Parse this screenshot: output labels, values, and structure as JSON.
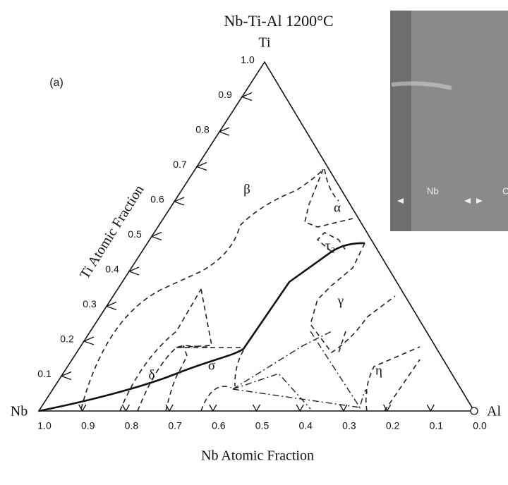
{
  "header": {
    "title": "Nb-Ti-Al 1200°C",
    "panel": "(a)"
  },
  "corners": {
    "top": "Ti",
    "left": "Nb",
    "right": "Al"
  },
  "axes": {
    "bottom_title": "Nb Atomic Fraction",
    "left_title": "Ti Atomic Fraction",
    "bottom_ticks": [
      "1.0",
      "0.9",
      "0.8",
      "0.7",
      "0.6",
      "0.5",
      "0.4",
      "0.3",
      "0.2",
      "0.1",
      "0.0"
    ],
    "left_ticks": [
      "0.1",
      "0.2",
      "0.3",
      "0.4",
      "0.5",
      "0.6",
      "0.7",
      "0.8",
      "0.9",
      "1.0"
    ]
  },
  "phases": [
    "β",
    "α",
    "τ₂",
    "γ",
    "σ",
    "δ",
    "η"
  ],
  "inset": {
    "labels": [
      "Nb",
      "C"
    ]
  }
}
